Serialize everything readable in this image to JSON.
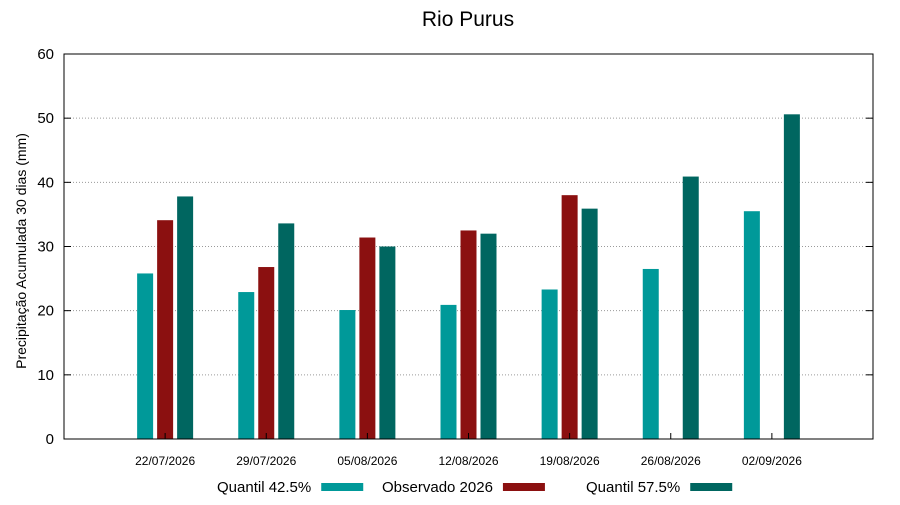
{
  "chart_data": {
    "type": "bar",
    "title": "Rio Purus",
    "xlabel": "",
    "ylabel": "Precipitação Acumulada 30 dias (mm)",
    "ylim": [
      0,
      60
    ],
    "yticks": [
      "0",
      "10",
      "20",
      "30",
      "40",
      "50",
      "60"
    ],
    "grid": true,
    "legend_position": "bottom",
    "categories": [
      "22/07/2026",
      "29/07/2026",
      "05/08/2026",
      "12/08/2026",
      "19/08/2026",
      "26/08/2026",
      "02/09/2026"
    ],
    "series": [
      {
        "name": "Quantil 42.5%",
        "color": "#009999",
        "values": [
          25.8,
          22.9,
          20.1,
          20.9,
          23.3,
          26.5,
          35.5
        ]
      },
      {
        "name": "Observado 2026",
        "color": "#8b1010",
        "values": [
          34.1,
          26.8,
          31.4,
          32.5,
          38.0,
          null,
          null
        ]
      },
      {
        "name": "Quantil 57.5%",
        "color": "#006660",
        "values": [
          37.8,
          33.6,
          30.0,
          32.0,
          35.9,
          40.9,
          50.6
        ]
      }
    ]
  }
}
